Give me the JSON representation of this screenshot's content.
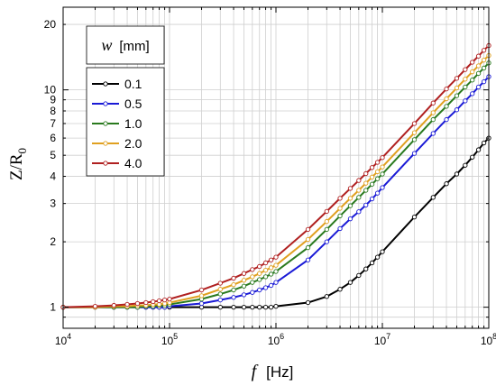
{
  "chart_data": {
    "type": "line",
    "xlabel_symbol": "f",
    "xlabel_unit": "[Hz]",
    "ylabel_base": "Z/R",
    "ylabel_sub": "0",
    "x_scale": "log",
    "y_scale": "log",
    "xlim": [
      10000,
      100000000
    ],
    "ylim": [
      0.8,
      24
    ],
    "grid": true,
    "x_ticks": [
      {
        "value": 10000,
        "base": "10",
        "exp": "4"
      },
      {
        "value": 100000,
        "base": "10",
        "exp": "5"
      },
      {
        "value": 1000000,
        "base": "10",
        "exp": "6"
      },
      {
        "value": 10000000,
        "base": "10",
        "exp": "7"
      },
      {
        "value": 100000000,
        "base": "10",
        "exp": "8"
      }
    ],
    "y_ticks": [
      {
        "value": 1,
        "label": "1"
      },
      {
        "value": 2,
        "label": "2"
      },
      {
        "value": 3,
        "label": "3"
      },
      {
        "value": 4,
        "label": "4"
      },
      {
        "value": 5,
        "label": "5"
      },
      {
        "value": 6,
        "label": "6"
      },
      {
        "value": 7,
        "label": "7"
      },
      {
        "value": 8,
        "label": "8"
      },
      {
        "value": 9,
        "label": "9"
      },
      {
        "value": 10,
        "label": "10"
      },
      {
        "value": 20,
        "label": "20"
      }
    ],
    "legend": {
      "title_symbol": "w",
      "title_unit": "[mm]",
      "position": "top-left"
    },
    "x": [
      10000,
      20000,
      30000,
      40000,
      50000,
      60000,
      70000,
      80000,
      90000,
      100000,
      200000,
      300000,
      400000,
      500000,
      600000,
      700000,
      800000,
      900000,
      1000000,
      2000000,
      3000000,
      4000000,
      5000000,
      6000000,
      7000000,
      8000000,
      9000000,
      10000000,
      20000000,
      30000000,
      40000000,
      50000000,
      60000000,
      70000000,
      80000000,
      90000000,
      100000000
    ],
    "series": [
      {
        "name": "0.1",
        "color": "#000000",
        "values": [
          1.0,
          1.0,
          1.0,
          1.0,
          1.0,
          1.0,
          1.0,
          1.0,
          1.0,
          1.0,
          1.0,
          1.0,
          1.0,
          1.0,
          1.0,
          1.0,
          1.0,
          1.0,
          1.01,
          1.05,
          1.12,
          1.21,
          1.3,
          1.4,
          1.5,
          1.6,
          1.7,
          1.8,
          2.6,
          3.2,
          3.7,
          4.1,
          4.5,
          4.9,
          5.3,
          5.7,
          6.0
        ]
      },
      {
        "name": "0.5",
        "color": "#1a1ad6",
        "values": [
          1.0,
          1.0,
          1.0,
          1.0,
          1.0,
          1.0,
          1.0,
          1.0,
          1.0,
          1.01,
          1.04,
          1.08,
          1.11,
          1.14,
          1.17,
          1.2,
          1.23,
          1.26,
          1.3,
          1.65,
          2.0,
          2.3,
          2.55,
          2.75,
          2.95,
          3.15,
          3.35,
          3.55,
          5.1,
          6.3,
          7.3,
          8.1,
          8.9,
          9.6,
          10.3,
          10.9,
          11.5
        ]
      },
      {
        "name": "1.0",
        "color": "#2a7a1e",
        "values": [
          1.0,
          1.0,
          1.0,
          1.0,
          1.0,
          1.01,
          1.01,
          1.02,
          1.02,
          1.03,
          1.09,
          1.15,
          1.2,
          1.25,
          1.3,
          1.34,
          1.38,
          1.42,
          1.46,
          1.88,
          2.28,
          2.63,
          2.93,
          3.2,
          3.45,
          3.68,
          3.9,
          4.1,
          5.9,
          7.3,
          8.4,
          9.4,
          10.3,
          11.1,
          11.9,
          12.6,
          13.3
        ]
      },
      {
        "name": "2.0",
        "color": "#e0a020",
        "values": [
          1.0,
          1.0,
          1.01,
          1.01,
          1.02,
          1.02,
          1.03,
          1.03,
          1.04,
          1.05,
          1.13,
          1.21,
          1.27,
          1.33,
          1.38,
          1.43,
          1.48,
          1.52,
          1.56,
          2.05,
          2.48,
          2.85,
          3.17,
          3.45,
          3.72,
          3.97,
          4.2,
          4.42,
          6.35,
          7.85,
          9.1,
          10.2,
          11.2,
          12.1,
          12.9,
          13.7,
          14.4
        ]
      },
      {
        "name": "4.0",
        "color": "#b02020",
        "values": [
          1.0,
          1.01,
          1.02,
          1.03,
          1.04,
          1.05,
          1.06,
          1.07,
          1.08,
          1.09,
          1.2,
          1.29,
          1.36,
          1.43,
          1.49,
          1.54,
          1.6,
          1.65,
          1.7,
          2.28,
          2.76,
          3.17,
          3.52,
          3.83,
          4.12,
          4.39,
          4.64,
          4.88,
          7.0,
          8.7,
          10.1,
          11.3,
          12.4,
          13.4,
          14.3,
          15.2,
          16.0
        ]
      }
    ]
  }
}
